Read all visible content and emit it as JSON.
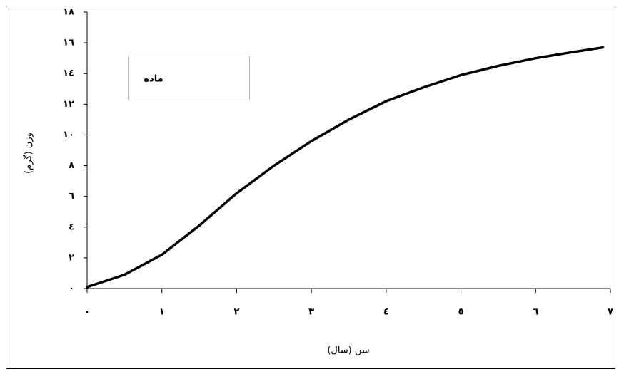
{
  "chart_data": {
    "type": "line",
    "series": [
      {
        "name": "ماده",
        "color": "#000000",
        "x": [
          0,
          0.5,
          1,
          1.5,
          2,
          2.5,
          3,
          3.5,
          4,
          4.5,
          5,
          5.5,
          6,
          6.5,
          6.9
        ],
        "values": [
          0.1,
          0.9,
          2.2,
          4.1,
          6.2,
          8.0,
          9.6,
          11.0,
          12.2,
          13.1,
          13.9,
          14.5,
          15.0,
          15.4,
          15.7
        ]
      }
    ],
    "xlabel": "سن (سال)",
    "ylabel": "وزن (گرم)",
    "xlim": [
      0,
      7
    ],
    "ylim": [
      0,
      18
    ],
    "xticks": [
      {
        "value": 0,
        "label": "٠"
      },
      {
        "value": 1,
        "label": "١"
      },
      {
        "value": 2,
        "label": "٢"
      },
      {
        "value": 3,
        "label": "٣"
      },
      {
        "value": 4,
        "label": "٤"
      },
      {
        "value": 5,
        "label": "٥"
      },
      {
        "value": 6,
        "label": "٦"
      },
      {
        "value": 7,
        "label": "٧"
      }
    ],
    "yticks": [
      {
        "value": 0,
        "label": "٠"
      },
      {
        "value": 2,
        "label": "٢"
      },
      {
        "value": 4,
        "label": "٤"
      },
      {
        "value": 6,
        "label": "٦"
      },
      {
        "value": 8,
        "label": "٨"
      },
      {
        "value": 10,
        "label": "١٠"
      },
      {
        "value": 12,
        "label": "١٢"
      },
      {
        "value": 14,
        "label": "١٤"
      },
      {
        "value": 16,
        "label": "١٦"
      },
      {
        "value": 18,
        "label": "١٨"
      }
    ],
    "grid": false
  }
}
